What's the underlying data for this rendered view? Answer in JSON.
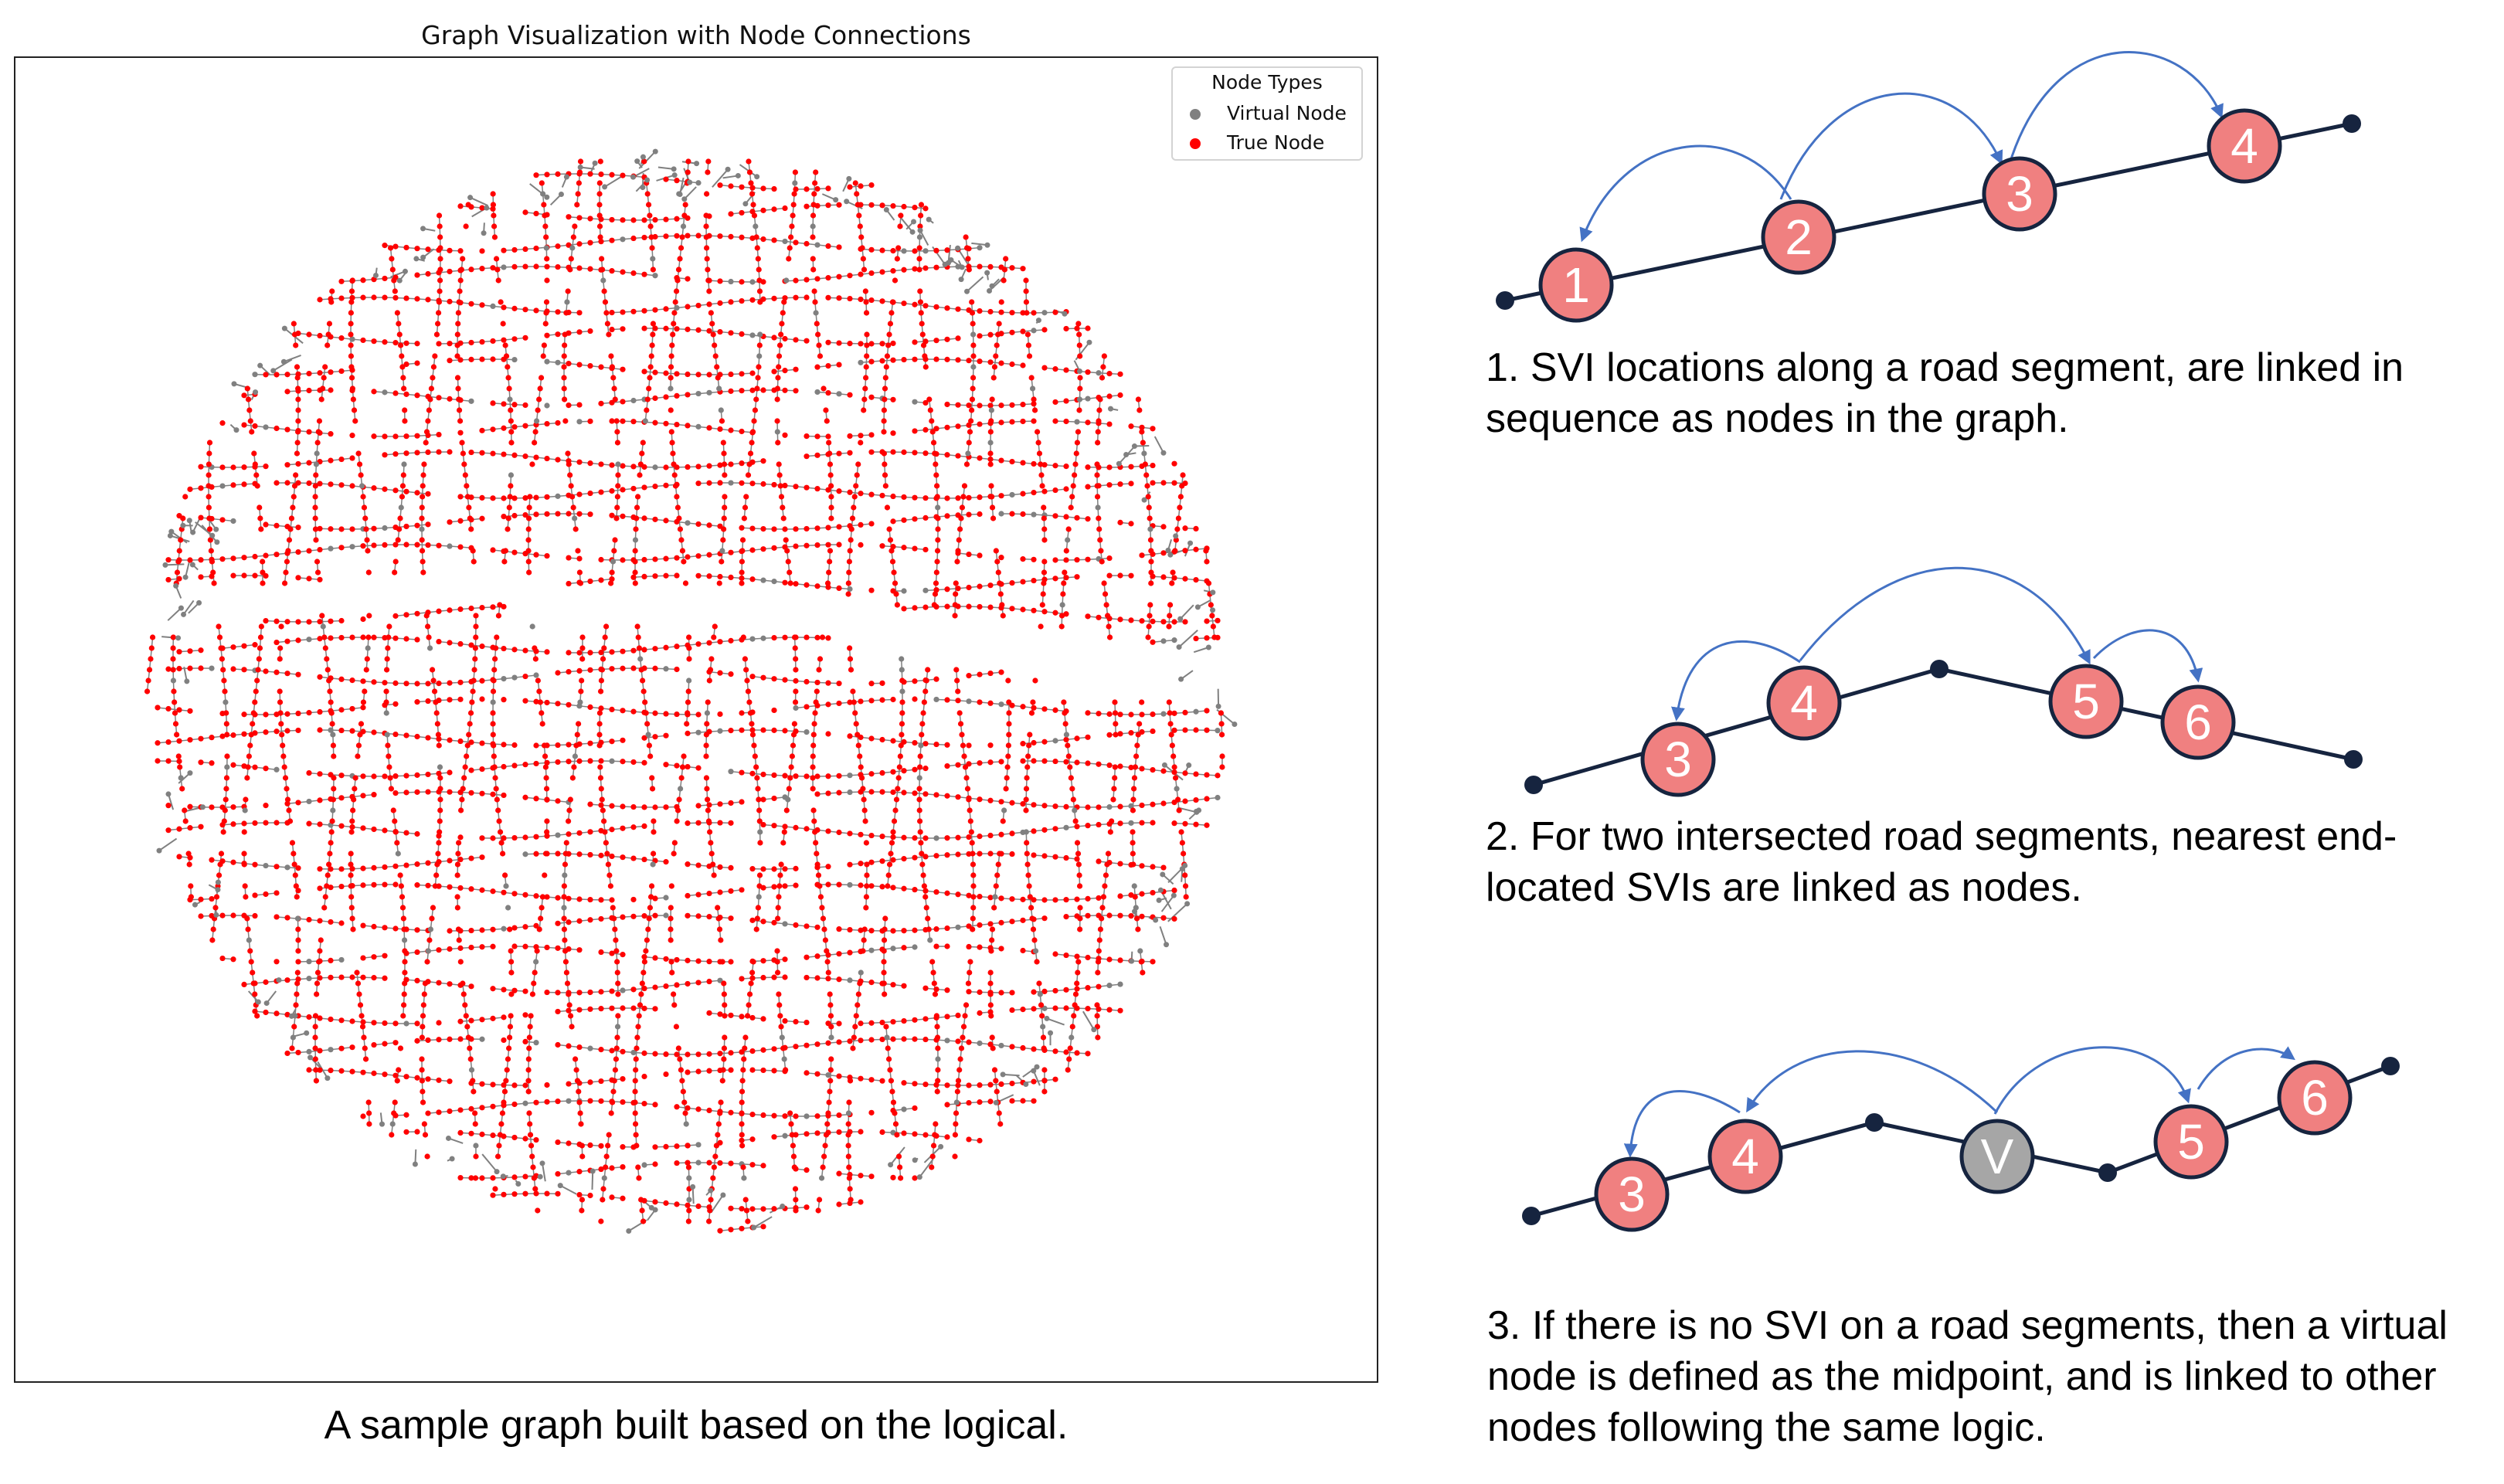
{
  "plot": {
    "title": "Graph Visualization with Node Connections",
    "legend": {
      "title": "Node Types",
      "items": [
        {
          "label": "Virtual Node",
          "color": "#808080"
        },
        {
          "label": "True Node",
          "color": "#ff0000"
        }
      ]
    },
    "caption": "A sample graph built based on the logical."
  },
  "colors": {
    "true_node": "#ff0000",
    "virtual_node": "#808080",
    "road_line": "#16243f",
    "svi_fill": "#f08080",
    "virtual_fill": "#a6a6a6",
    "arrow": "#4472c4"
  },
  "diagram1": {
    "nodes": [
      "1",
      "2",
      "3",
      "4"
    ],
    "caption_line1": "1. SVI locations along a road segment, are linked in",
    "caption_line2": "sequence as nodes in the graph."
  },
  "diagram2": {
    "nodes": [
      "3",
      "4",
      "5",
      "6"
    ],
    "caption_line1": "2. For two intersected road segments, nearest end-",
    "caption_line2": "located SVIs are linked as nodes."
  },
  "diagram3": {
    "nodes": [
      "3",
      "4",
      "V",
      "5",
      "6"
    ],
    "caption_line1": "3. If there is no SVI on a road segments, then a virtual",
    "caption_line2": "node is defined as the midpoint, and is linked to other",
    "caption_line3": "nodes following the same logic."
  }
}
